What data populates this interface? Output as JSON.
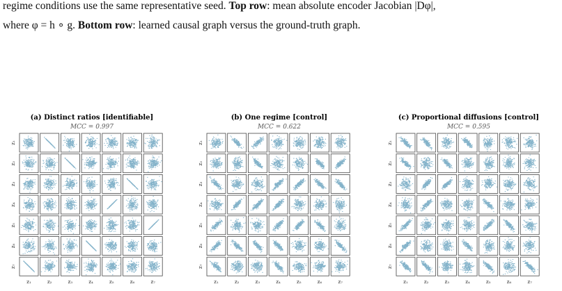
{
  "caption": {
    "line1": [
      {
        "text": "regime conditions use the same representative seed. ",
        "bold": false
      },
      {
        "text": "Top row",
        "bold": true
      },
      {
        "text": ": mean absolute encoder Jacobian ",
        "bold": false
      },
      {
        "text": "|Dφ|",
        "bold": false
      },
      {
        "text": ",",
        "bold": false
      }
    ],
    "line2": [
      {
        "text": "where φ = h ∘ g. ",
        "bold": false
      },
      {
        "text": "Bottom row",
        "bold": true
      },
      {
        "text": ": learned causal graph versus the ground-truth graph.",
        "bold": false
      }
    ]
  },
  "panels": [
    {
      "title": "(a) Distinct ratios  [identifiable]",
      "mcc": "MCC = 0.997",
      "row_labels": [
        "z₁",
        "z₂",
        "z₃",
        "z₄",
        "z₅",
        "z₆",
        "z₇"
      ],
      "col_labels": [
        "z₁",
        "z₂",
        "z₃",
        "z₄",
        "z₅",
        "z₆",
        "z₇"
      ]
    },
    {
      "title": "(b) One regime  [control]",
      "mcc": "MCC = 0.622",
      "row_labels": [
        "z₁",
        "z₂",
        "z₃",
        "z₄",
        "z₅",
        "z₆",
        "z₇"
      ],
      "col_labels": [
        "z₁",
        "z₂",
        "z₃",
        "z₄",
        "z₅",
        "z₆",
        "z₇"
      ]
    },
    {
      "title": "(c) Proportional diffusions  [control]",
      "mcc": "MCC = 0.595",
      "row_labels": [
        "z₁",
        "z₂",
        "z₃",
        "z₄",
        "z₅",
        "z₆",
        "z₇"
      ],
      "col_labels": [
        "z₁",
        "z₂",
        "z₃",
        "z₄",
        "z₅",
        "z₆",
        "z₇"
      ]
    }
  ]
}
